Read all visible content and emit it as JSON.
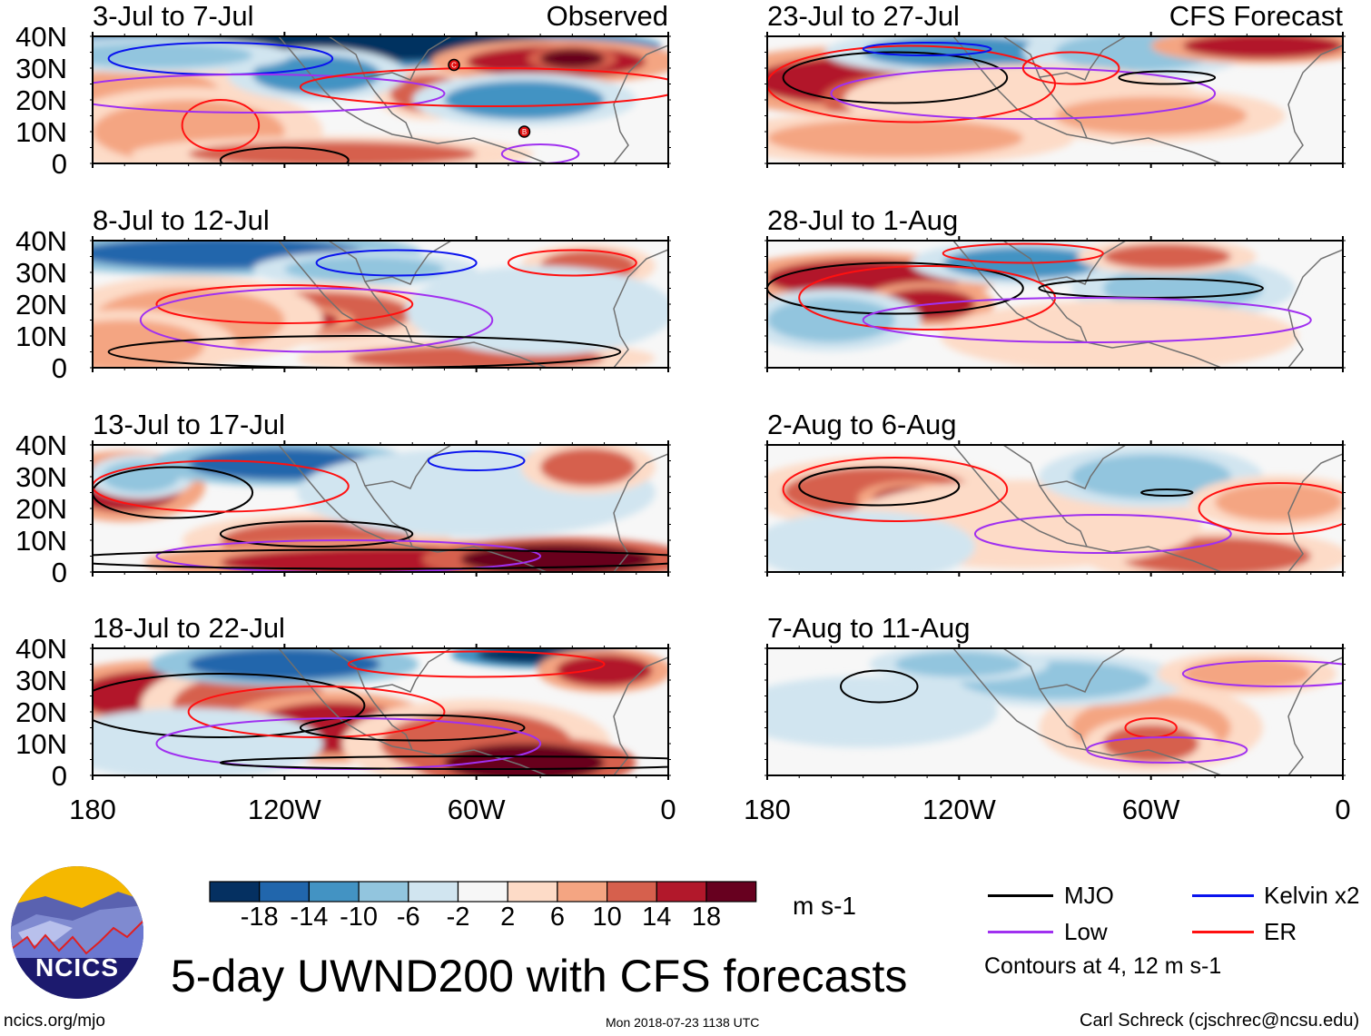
{
  "colors": {
    "scale": [
      "#053061",
      "#2166ac",
      "#4393c3",
      "#92c5de",
      "#d1e5f0",
      "#f7f7f7",
      "#fddbc7",
      "#f4a582",
      "#d6604d",
      "#b2182b",
      "#67001f"
    ],
    "mjo": "#000000",
    "kelvin": "#0a14ee",
    "low": "#a030f0",
    "er": "#ff1010"
  },
  "panels": {
    "left": [
      {
        "title": "3-Jul to 7-Jul",
        "tag": "Observed"
      },
      {
        "title": "8-Jul to 12-Jul"
      },
      {
        "title": "13-Jul to 17-Jul"
      },
      {
        "title": "18-Jul to 22-Jul"
      }
    ],
    "right": [
      {
        "title": "23-Jul to 27-Jul",
        "tag": "CFS Forecast"
      },
      {
        "title": "28-Jul to 1-Aug"
      },
      {
        "title": "2-Aug to 6-Aug"
      },
      {
        "title": "7-Aug to 11-Aug"
      }
    ]
  },
  "storm_labels": [
    "C",
    "B"
  ],
  "y_ticks": [
    "40N",
    "30N",
    "20N",
    "10N",
    "0"
  ],
  "x_ticks": [
    "180",
    "120W",
    "60W",
    "0"
  ],
  "colorbar": {
    "labels": [
      "-18",
      "-14",
      "-10",
      "-6",
      "-2",
      "2",
      "6",
      "10",
      "14",
      "18"
    ],
    "units": "m s-1"
  },
  "legend": {
    "mjo": "MJO",
    "kelvin": "Kelvin x2",
    "low": "Low",
    "er": "ER",
    "note": "Contours at 4, 12 m s-1"
  },
  "logo": {
    "text": "NCICS"
  },
  "title": "5-day UWND200 with CFS forecasts",
  "footer": {
    "url": "ncics.org/mjo",
    "timestamp": "Mon 2018-07-23 1138 UTC",
    "author": "Carl Schreck (cjschrec@ncsu.edu)"
  }
}
